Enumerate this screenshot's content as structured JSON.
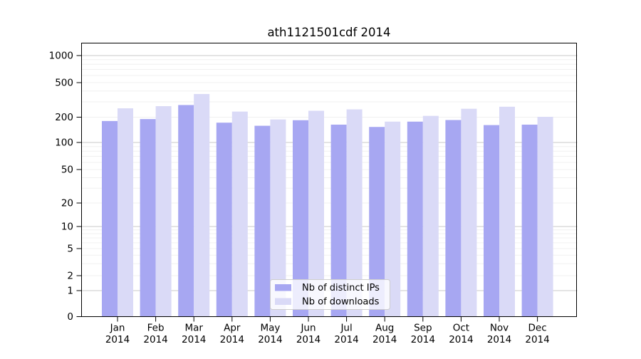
{
  "chart_data": {
    "type": "bar",
    "title": "ath1121501cdf 2014",
    "categories": [
      "Jan",
      "Feb",
      "Mar",
      "Apr",
      "May",
      "Jun",
      "Jul",
      "Aug",
      "Sep",
      "Oct",
      "Nov",
      "Dec"
    ],
    "category_year": "2014",
    "series": [
      {
        "name": "Nb of distinct IPs",
        "color": "#a7a7f2",
        "values": [
          180,
          190,
          276,
          172,
          158,
          184,
          163,
          153,
          177,
          185,
          161,
          163
        ]
      },
      {
        "name": "Nb of downloads",
        "color": "#dadaf7",
        "values": [
          253,
          268,
          370,
          232,
          188,
          237,
          246,
          177,
          207,
          250,
          264,
          202
        ]
      }
    ],
    "xlabel": "",
    "ylabel": "",
    "yticks": [
      0,
      1,
      2,
      5,
      10,
      20,
      50,
      100,
      200,
      500,
      1000
    ],
    "scale": "symlog",
    "ylim": [
      0,
      1450
    ],
    "grid": "horizontal",
    "legend_position": "lower center"
  },
  "colors": {
    "bar_distinct_ips": "#a7a7f2",
    "bar_downloads": "#dadaf7",
    "grid_major": "#c9c9c9",
    "grid_minor": "#f0f0f0",
    "axis": "#000000",
    "legend_border": "#cccccc",
    "legend_background": "#ffffff"
  }
}
